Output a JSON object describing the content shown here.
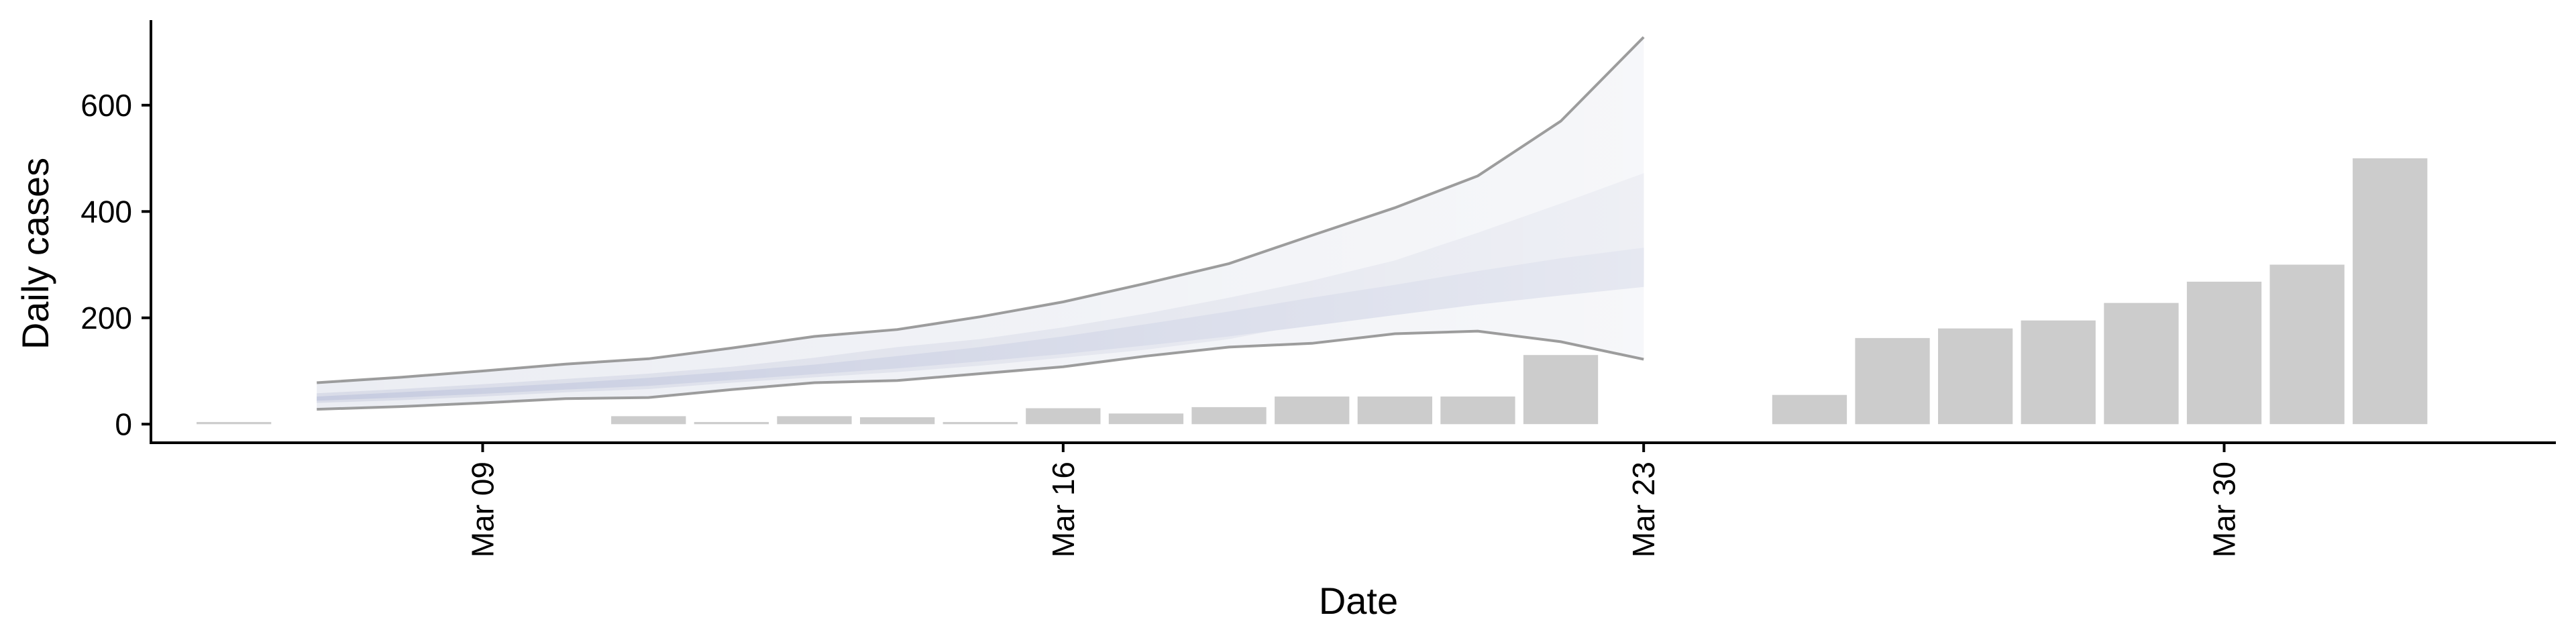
{
  "chart_data": {
    "type": "bar",
    "title": "",
    "xlabel": "Date",
    "ylabel": "Daily cases",
    "x_ticks": [
      "Mar 09",
      "Mar 16",
      "Mar 23",
      "Mar 30"
    ],
    "y_ticks": [
      "0",
      "200",
      "400",
      "600"
    ],
    "ylim": [
      -35,
      760
    ],
    "xlim": [
      "2020-03-05",
      "2020-04-03"
    ],
    "grid": false,
    "legend": "none",
    "bars": {
      "dates": [
        "2020-03-06",
        "2020-03-11",
        "2020-03-12",
        "2020-03-13",
        "2020-03-14",
        "2020-03-15",
        "2020-03-16",
        "2020-03-17",
        "2020-03-18",
        "2020-03-19",
        "2020-03-20",
        "2020-03-21",
        "2020-03-22",
        "2020-03-23",
        "2020-03-25",
        "2020-03-26",
        "2020-03-27",
        "2020-03-28",
        "2020-03-29",
        "2020-03-30",
        "2020-03-31",
        "2020-04-01"
      ],
      "values": [
        4,
        15,
        4,
        15,
        13,
        4,
        30,
        20,
        32,
        52,
        52,
        52,
        130,
        0,
        55,
        162,
        180,
        195,
        228,
        268,
        300,
        500
      ]
    },
    "forecast": {
      "dates": [
        "2020-03-07",
        "2020-03-08",
        "2020-03-09",
        "2020-03-10",
        "2020-03-11",
        "2020-03-12",
        "2020-03-13",
        "2020-03-14",
        "2020-03-15",
        "2020-03-16",
        "2020-03-17",
        "2020-03-18",
        "2020-03-19",
        "2020-03-20",
        "2020-03-21",
        "2020-03-22",
        "2020-03-23"
      ],
      "outer_upper": [
        78,
        88,
        100,
        113,
        123,
        143,
        165,
        178,
        202,
        230,
        265,
        302,
        355,
        407,
        467,
        570,
        728
      ],
      "outer_lower": [
        28,
        33,
        40,
        48,
        50,
        65,
        78,
        82,
        95,
        108,
        128,
        145,
        152,
        170,
        175,
        155,
        122
      ],
      "inner_upper": [
        58,
        66,
        75,
        85,
        95,
        108,
        125,
        145,
        160,
        182,
        208,
        238,
        270,
        308,
        360,
        415,
        472
      ],
      "inner_lower": [
        40,
        45,
        52,
        60,
        66,
        78,
        88,
        98,
        110,
        125,
        140,
        160,
        190,
        225,
        245,
        265,
        272
      ],
      "core_upper": [
        52,
        60,
        68,
        77,
        87,
        99,
        112,
        128,
        145,
        165,
        188,
        212,
        238,
        262,
        288,
        312,
        332
      ],
      "core_lower": [
        44,
        50,
        57,
        65,
        72,
        83,
        94,
        105,
        118,
        132,
        148,
        165,
        185,
        205,
        225,
        242,
        258
      ]
    },
    "colors": {
      "bar": "#cccccc",
      "outer_band": "#ebedf3",
      "inner_band": "#d9dce8",
      "core_band": "#c7cce0",
      "bound_line": "#8c8c8c",
      "axis": "#000000"
    }
  }
}
